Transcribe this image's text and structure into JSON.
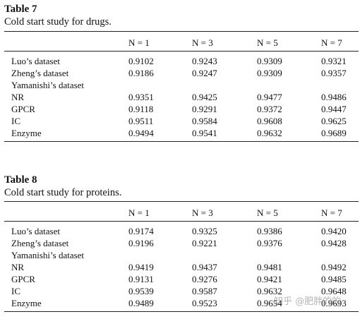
{
  "tables": [
    {
      "title": "Table 7",
      "caption": "Cold start study for drugs.",
      "columns": [
        "N = 1",
        "N = 3",
        "N = 5",
        "N = 7"
      ],
      "rows": [
        {
          "label": "Luo’s dataset",
          "values": [
            "0.9102",
            "0.9243",
            "0.9309",
            "0.9321"
          ]
        },
        {
          "label": "Zheng’s dataset",
          "values": [
            "0.9186",
            "0.9247",
            "0.9309",
            "0.9357"
          ]
        },
        {
          "label": "Yamanishi’s dataset",
          "values": [
            "",
            "",
            "",
            ""
          ]
        },
        {
          "label": "NR",
          "values": [
            "0.9351",
            "0.9425",
            "0.9477",
            "0.9486"
          ]
        },
        {
          "label": "GPCR",
          "values": [
            "0.9118",
            "0.9291",
            "0.9372",
            "0.9447"
          ]
        },
        {
          "label": "IC",
          "values": [
            "0.9511",
            "0.9584",
            "0.9608",
            "0.9625"
          ]
        },
        {
          "label": "Enzyme",
          "values": [
            "0.9494",
            "0.9541",
            "0.9632",
            "0.9689"
          ]
        }
      ]
    },
    {
      "title": "Table 8",
      "caption": "Cold start study for proteins.",
      "columns": [
        "N = 1",
        "N = 3",
        "N = 5",
        "N = 7"
      ],
      "rows": [
        {
          "label": "Luo’s dataset",
          "values": [
            "0.9174",
            "0.9325",
            "0.9386",
            "0.9420"
          ]
        },
        {
          "label": "Zheng’s dataset",
          "values": [
            "0.9196",
            "0.9221",
            "0.9376",
            "0.9428"
          ]
        },
        {
          "label": "Yamanishi’s dataset",
          "values": [
            "",
            "",
            "",
            ""
          ]
        },
        {
          "label": "NR",
          "values": [
            "0.9419",
            "0.9437",
            "0.9481",
            "0.9492"
          ]
        },
        {
          "label": "GPCR",
          "values": [
            "0.9131",
            "0.9276",
            "0.9421",
            "0.9485"
          ]
        },
        {
          "label": "IC",
          "values": [
            "0.9539",
            "0.9587",
            "0.9632",
            "0.9648"
          ]
        },
        {
          "label": "Enzyme",
          "values": [
            "0.9489",
            "0.9523",
            "0.9654",
            "0.9693"
          ]
        }
      ]
    }
  ],
  "watermark": "知乎 @肥胖的的"
}
